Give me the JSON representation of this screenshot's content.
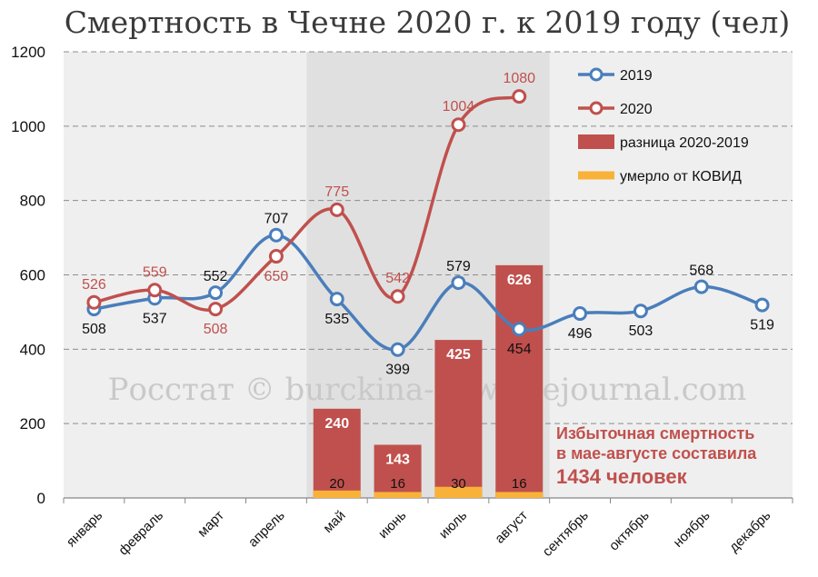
{
  "colors": {
    "s2019": "#4a7ebb",
    "s2020": "#c0504d",
    "diff": "#c0504d",
    "covid": "#f8b23a",
    "plot_bg": "#efefef",
    "highlight_bg": "#e0e0e0",
    "grid": "#8c8c8c"
  },
  "watermark": "Росстат © burckina-new.livejournal.com",
  "annotation": {
    "line1": "Избыточная смертность",
    "line2": "в мае-августе составила",
    "line3": "1434 человек"
  },
  "chart_data": {
    "type": "line",
    "title": "Смертность в Чечне 2020 г. к 2019 году (чел)",
    "xlabel": "",
    "ylabel": "",
    "ylim": [
      0,
      1200
    ],
    "yticks": [
      0,
      200,
      400,
      600,
      800,
      1000,
      1200
    ],
    "grid": true,
    "legend_position": "top-right",
    "highlight_range": [
      "май",
      "август"
    ],
    "categories": [
      "январь",
      "февраль",
      "март",
      "апрель",
      "май",
      "июнь",
      "июль",
      "август",
      "сентябрь",
      "октябрь",
      "ноябрь",
      "декабрь"
    ],
    "series": [
      {
        "name": "2019",
        "type": "line",
        "values": [
          508,
          537,
          552,
          707,
          535,
          399,
          579,
          454,
          496,
          503,
          568,
          519
        ]
      },
      {
        "name": "2020",
        "type": "line",
        "values": [
          526,
          559,
          508,
          650,
          775,
          542,
          1004,
          1080,
          null,
          null,
          null,
          null
        ]
      },
      {
        "name": "разница 2020-2019",
        "type": "bar",
        "values": [
          null,
          null,
          null,
          null,
          240,
          143,
          425,
          626,
          null,
          null,
          null,
          null
        ]
      },
      {
        "name": "умерло от КОВИД",
        "type": "bar",
        "values": [
          null,
          null,
          null,
          null,
          20,
          16,
          30,
          16,
          null,
          null,
          null,
          null
        ]
      }
    ]
  }
}
